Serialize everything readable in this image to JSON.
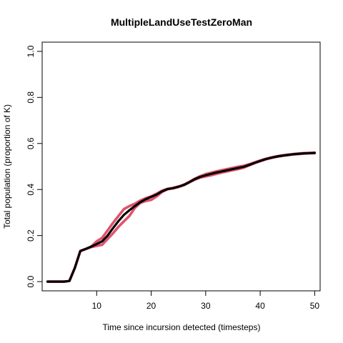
{
  "chart_data": {
    "type": "line",
    "title": "MultipleLandUseTestZeroMan",
    "xlabel": "Time since incursion detected (timesteps)",
    "ylabel": "Total population (proportion of K)",
    "xlim": [
      0,
      51
    ],
    "ylim": [
      -0.04,
      1.04
    ],
    "xticks": [
      "10",
      "20",
      "30",
      "40",
      "50"
    ],
    "yticks": [
      "0.0",
      "0.2",
      "0.4",
      "0.6",
      "0.8",
      "1.0"
    ],
    "xtick_values": [
      10,
      20,
      30,
      40,
      50
    ],
    "ytick_values": [
      0.0,
      0.2,
      0.4,
      0.6,
      0.8,
      1.0
    ],
    "grid": false,
    "series": [
      {
        "color": "#000000",
        "x": [
          1,
          2,
          3,
          4,
          5,
          6,
          7,
          8,
          9,
          10,
          11,
          12,
          13,
          14,
          15,
          16,
          17,
          18,
          19,
          20,
          21,
          22,
          23,
          24,
          25,
          26,
          27,
          28,
          29,
          30,
          31,
          32,
          33,
          34,
          35,
          36,
          37,
          38,
          39,
          40,
          41,
          42,
          43,
          44,
          45,
          46,
          47,
          48,
          49,
          50
        ],
        "y": [
          0.0,
          0.0,
          0.0,
          0.0,
          0.003,
          0.06,
          0.133,
          0.142,
          0.152,
          0.163,
          0.175,
          0.2,
          0.232,
          0.263,
          0.29,
          0.31,
          0.328,
          0.345,
          0.358,
          0.368,
          0.378,
          0.392,
          0.402,
          0.406,
          0.412,
          0.42,
          0.432,
          0.445,
          0.455,
          0.462,
          0.468,
          0.474,
          0.479,
          0.484,
          0.489,
          0.494,
          0.499,
          0.507,
          0.516,
          0.524,
          0.532,
          0.538,
          0.543,
          0.547,
          0.55,
          0.553,
          0.555,
          0.557,
          0.558,
          0.559
        ]
      },
      {
        "color": "#DF536B",
        "x": [
          1,
          2,
          3,
          4,
          5,
          6,
          7,
          8,
          9,
          10,
          11,
          12,
          13,
          14,
          15,
          16,
          17,
          18,
          19,
          20,
          21,
          22,
          23,
          24,
          25,
          26,
          27,
          28,
          29,
          30,
          31,
          32,
          33,
          34,
          35,
          36,
          37,
          38,
          39,
          40,
          41,
          42,
          43,
          44,
          45,
          46,
          47,
          48,
          49,
          50
        ],
        "y": [
          0.0,
          0.0,
          0.0,
          0.0,
          0.003,
          0.06,
          0.133,
          0.142,
          0.152,
          0.175,
          0.19,
          0.222,
          0.255,
          0.285,
          0.315,
          0.328,
          0.338,
          0.352,
          0.362,
          0.37,
          0.382,
          0.395,
          0.403,
          0.407,
          0.413,
          0.421,
          0.433,
          0.447,
          0.458,
          0.467,
          0.473,
          0.479,
          0.484,
          0.489,
          0.494,
          0.499,
          0.503,
          0.51,
          0.518,
          0.526,
          0.533,
          0.539,
          0.544,
          0.548,
          0.551,
          0.554,
          0.556,
          0.558,
          0.559,
          0.56
        ]
      },
      {
        "color": "#DF536B",
        "x": [
          1,
          2,
          3,
          4,
          5,
          6,
          7,
          8,
          9,
          10,
          11,
          12,
          13,
          14,
          15,
          16,
          17,
          18,
          19,
          20,
          21,
          22,
          23,
          24,
          25,
          26,
          27,
          28,
          29,
          30,
          31,
          32,
          33,
          34,
          35,
          36,
          37,
          38,
          39,
          40,
          41,
          42,
          43,
          44,
          45,
          46,
          47,
          48,
          49,
          50
        ],
        "y": [
          0.0,
          0.0,
          0.0,
          0.0,
          0.003,
          0.06,
          0.133,
          0.142,
          0.15,
          0.155,
          0.16,
          0.185,
          0.21,
          0.238,
          0.262,
          0.285,
          0.32,
          0.342,
          0.35,
          0.355,
          0.37,
          0.39,
          0.401,
          0.405,
          0.411,
          0.419,
          0.431,
          0.443,
          0.452,
          0.457,
          0.462,
          0.468,
          0.474,
          0.479,
          0.484,
          0.489,
          0.495,
          0.505,
          0.515,
          0.523,
          0.531,
          0.537,
          0.542,
          0.546,
          0.549,
          0.552,
          0.554,
          0.556,
          0.557,
          0.558
        ]
      }
    ]
  }
}
